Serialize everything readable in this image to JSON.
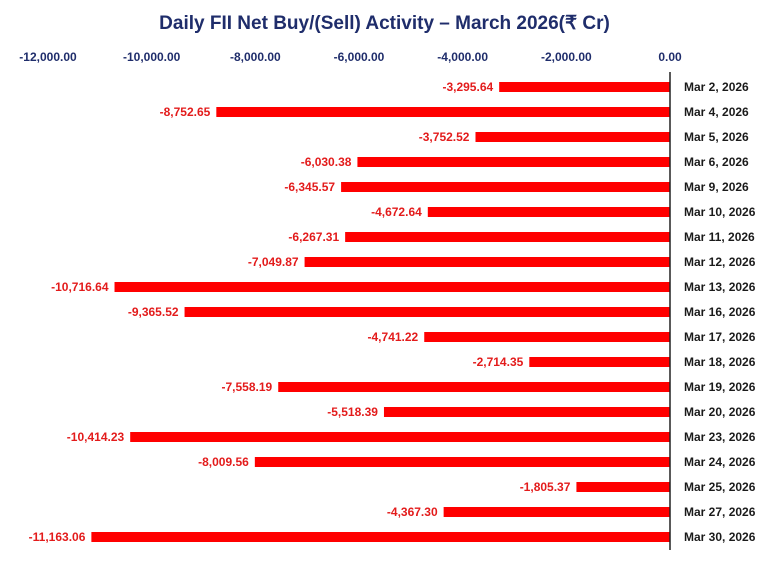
{
  "chart_data": {
    "type": "bar",
    "orientation": "horizontal",
    "title": "Daily FII Net Buy/(Sell) Activity – March 2026(₹ Cr)",
    "xlim": [
      -12000,
      0
    ],
    "x_ticks": [
      -12000,
      -10000,
      -8000,
      -6000,
      -4000,
      -2000,
      0
    ],
    "x_tick_labels": [
      "-12,000.00",
      "-10,000.00",
      "-8,000.00",
      "-6,000.00",
      "-4,000.00",
      "-2,000.00",
      "0.00"
    ],
    "x_axis_position": "top",
    "grid": false,
    "legend": "none",
    "bar_color": "#ff0000",
    "label_color": "#e31b1b",
    "categories": [
      "Mar 2, 2026",
      "Mar 4, 2026",
      "Mar 5, 2026",
      "Mar 6, 2026",
      "Mar 9, 2026",
      "Mar 10, 2026",
      "Mar 11, 2026",
      "Mar 12, 2026",
      "Mar 13, 2026",
      "Mar 16, 2026",
      "Mar 17, 2026",
      "Mar 18, 2026",
      "Mar 19, 2026",
      "Mar 20, 2026",
      "Mar 23, 2026",
      "Mar 24, 2026",
      "Mar 25, 2026",
      "Mar 27, 2026",
      "Mar 30, 2026"
    ],
    "values": [
      -3295.64,
      -8752.65,
      -3752.52,
      -6030.38,
      -6345.57,
      -4672.64,
      -6267.31,
      -7049.87,
      -10716.64,
      -9365.52,
      -4741.22,
      -2714.35,
      -7558.19,
      -5518.39,
      -10414.23,
      -8009.56,
      -1805.37,
      -4367.3,
      -11163.06
    ],
    "data_labels": [
      "-3,295.64",
      "-8,752.65",
      "-3,752.52",
      "-6,030.38",
      "-6,345.57",
      "-4,672.64",
      "-6,267.31",
      "-7,049.87",
      "-10,716.64",
      "-9,365.52",
      "-4,741.22",
      "-2,714.35",
      "-7,558.19",
      "-5,518.39",
      "-10,414.23",
      "-8,009.56",
      "-1,805.37",
      "-4,367.30",
      "-11,163.06"
    ]
  }
}
